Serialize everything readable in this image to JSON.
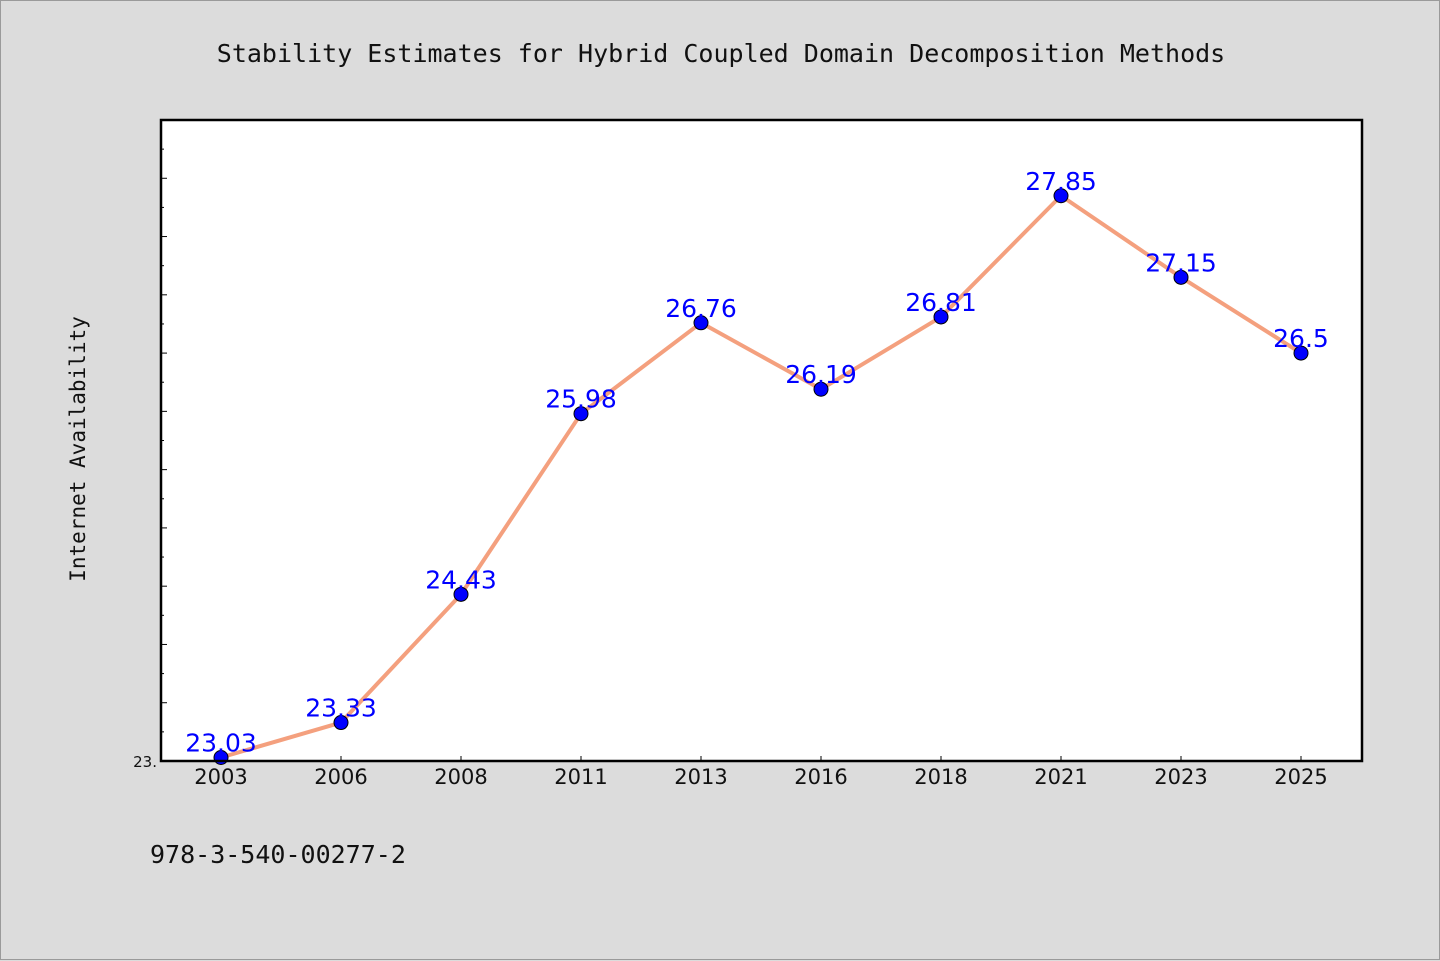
{
  "chart_data": {
    "type": "line",
    "title": "Stability Estimates for Hybrid Coupled Domain Decomposition Methods",
    "xlabel": "",
    "ylabel": "Internet Availability",
    "categories": [
      "2003",
      "2006",
      "2008",
      "2011",
      "2013",
      "2016",
      "2018",
      "2021",
      "2023",
      "2025"
    ],
    "series": [
      {
        "values": [
          23.03,
          23.33,
          24.43,
          25.98,
          26.76,
          26.19,
          26.81,
          27.85,
          27.15,
          26.5
        ],
        "data_labels": [
          "23.03",
          "23.33",
          "24.43",
          "25.98",
          "26.76",
          "26.19",
          "26.81",
          "27.85",
          "27.15",
          "26.5"
        ],
        "line_color": "#f4a07e",
        "marker_color": "#0000ff"
      }
    ],
    "ylim": [
      23.0,
      28.5
    ],
    "y_tick_labels": [
      "23."
    ],
    "grid": false,
    "legend": "none"
  },
  "footer": {
    "isbn": "978-3-540-00277-2"
  },
  "colors": {
    "background": "#dcdcdc",
    "plot_background": "#ffffff",
    "axis": "#000000"
  }
}
